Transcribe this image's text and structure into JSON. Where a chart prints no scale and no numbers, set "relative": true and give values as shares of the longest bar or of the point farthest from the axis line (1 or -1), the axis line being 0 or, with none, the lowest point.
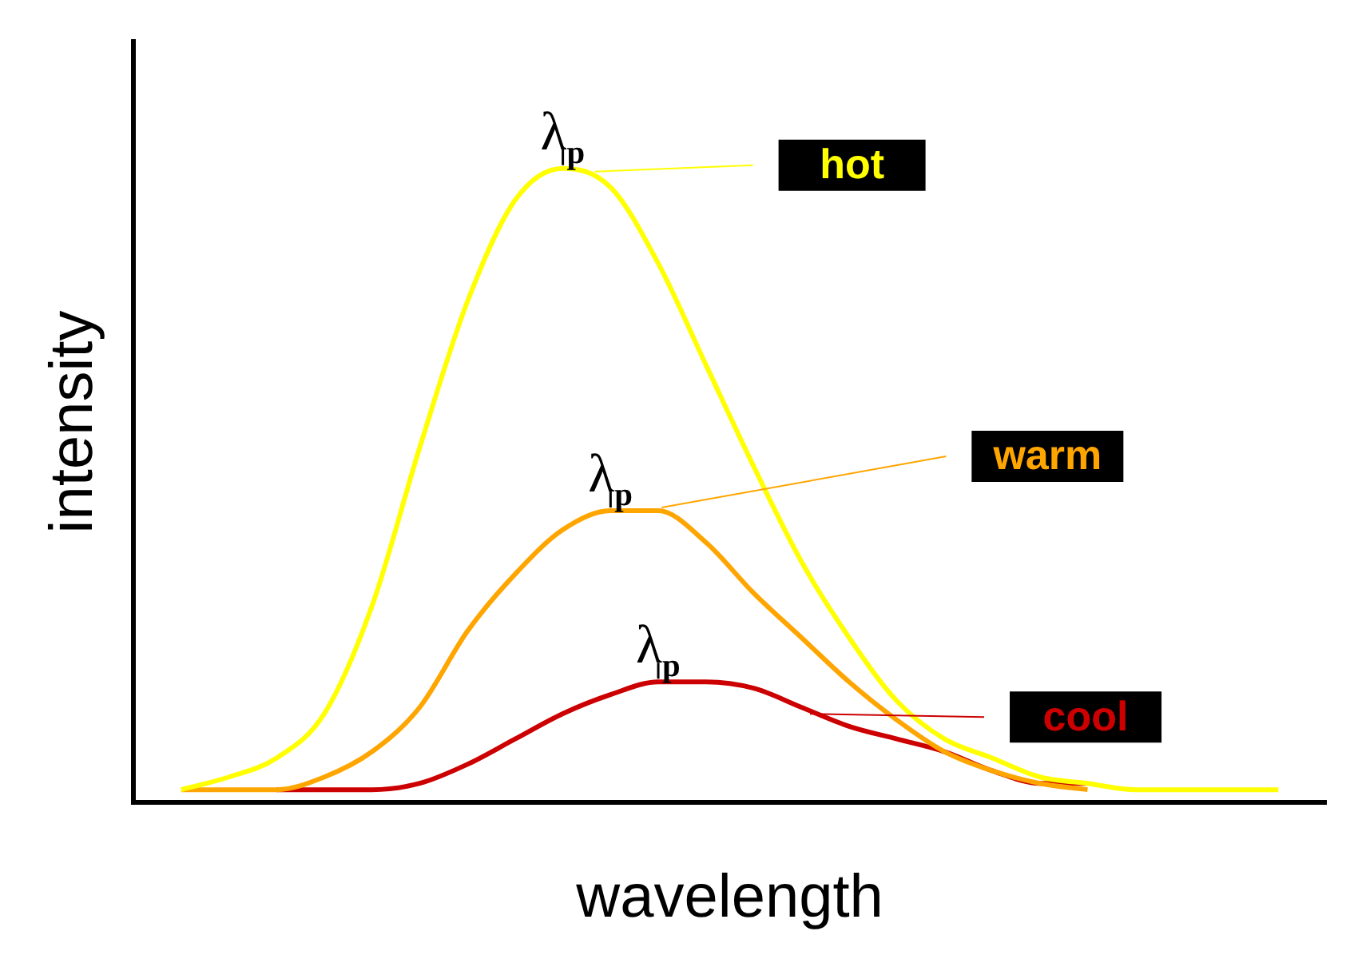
{
  "chart_data": {
    "type": "line",
    "relative": true,
    "xlabel": "wavelength",
    "ylabel": "intensity",
    "legend": "right",
    "marker": "none",
    "grid": false,
    "categories": [
      null,
      null,
      null,
      null,
      null,
      null,
      null,
      null,
      null,
      null,
      null,
      null,
      null,
      null,
      null,
      null,
      null,
      null,
      null,
      null,
      null,
      null,
      null,
      null,
      null,
      null
    ],
    "series": [
      {
        "name": "hot",
        "color": "#ffff00",
        "values": [
          null,
          0.02,
          0.04,
          0.07,
          0.14,
          0.31,
          0.56,
          0.79,
          0.95,
          1.0,
          0.97,
          0.85,
          0.69,
          0.53,
          0.38,
          0.26,
          0.16,
          0.1,
          0.07,
          0.04,
          0.03,
          0.02,
          0.02,
          0.02,
          0.02,
          null
        ]
      },
      {
        "name": "warm",
        "color": "#ffa500",
        "values": [
          null,
          0.02,
          0.02,
          0.02,
          0.04,
          0.08,
          0.15,
          0.27,
          0.36,
          0.43,
          0.46,
          0.46,
          0.41,
          0.33,
          0.26,
          0.19,
          0.13,
          0.08,
          0.05,
          0.03,
          0.02,
          null,
          null,
          null,
          null,
          null
        ]
      },
      {
        "name": "cool",
        "color": "#cc0000",
        "values": [
          null,
          null,
          null,
          0.02,
          0.02,
          0.02,
          0.03,
          0.06,
          0.1,
          0.14,
          0.17,
          0.19,
          0.19,
          0.18,
          0.15,
          0.12,
          0.1,
          0.08,
          0.05,
          0.03,
          0.03,
          null,
          null,
          null,
          null,
          null
        ]
      }
    ],
    "annotations": [
      "λ$_{p}$",
      "λ$_{p}$",
      "λ$_{p}$"
    ]
  }
}
